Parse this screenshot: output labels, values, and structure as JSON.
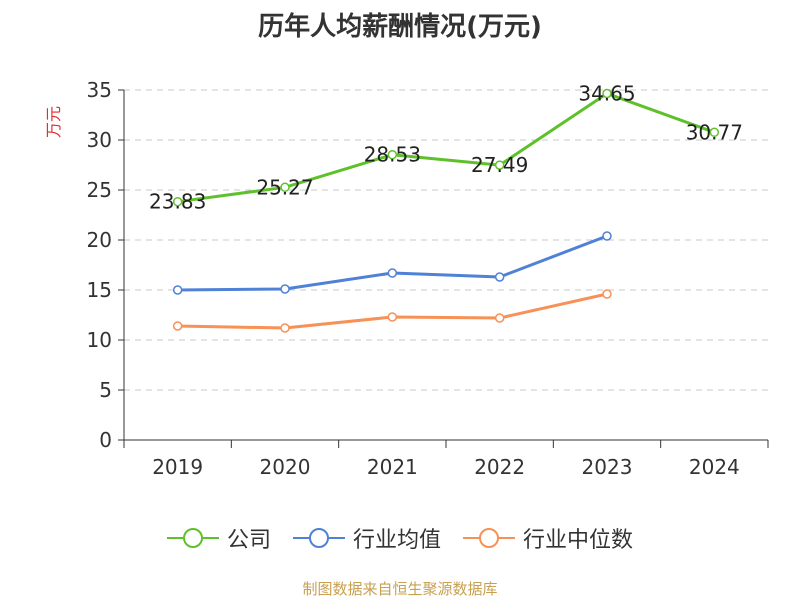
{
  "chart_data": {
    "type": "line",
    "title": "历年人均薪酬情况(万元)",
    "ylabel": "万元",
    "xlabel": "",
    "categories": [
      "2019",
      "2020",
      "2021",
      "2022",
      "2023",
      "2024"
    ],
    "ylim": [
      0,
      35
    ],
    "yticks": [
      0,
      5,
      10,
      15,
      20,
      25,
      30,
      35
    ],
    "grid": true,
    "legend_position": "bottom",
    "series": [
      {
        "name": "公司",
        "color": "#5ec12b",
        "values": [
          23.83,
          25.27,
          28.53,
          27.49,
          34.65,
          30.77
        ],
        "show_labels": true
      },
      {
        "name": "行业均值",
        "color": "#4f81d6",
        "values": [
          15.0,
          15.1,
          16.7,
          16.3,
          20.4,
          null
        ],
        "show_labels": false
      },
      {
        "name": "行业中位数",
        "color": "#f79155",
        "values": [
          11.4,
          11.2,
          12.3,
          12.2,
          14.6,
          null
        ],
        "show_labels": false
      }
    ]
  },
  "source": "制图数据来自恒生聚源数据库"
}
